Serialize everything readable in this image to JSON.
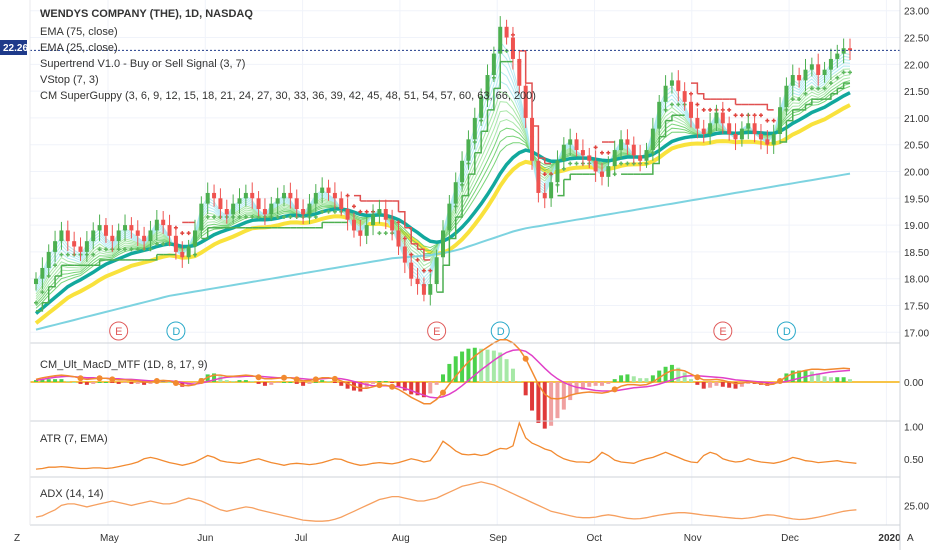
{
  "chart_data": [
    {
      "type": "candlestick",
      "title": "WENDYS COMPANY (THE), 1D, NASDAQ",
      "indicators": [
        "EMA (75, close)",
        "EMA (25, close)",
        "Supertrend V1.0 - Buy or Sell Signal (3, 7)",
        "VStop (7, 3)",
        "CM SuperGuppy (3, 6, 9, 12, 15, 18, 21, 24, 27, 30, 33, 36, 39, 42, 45, 48, 51, 54, 57, 60, 63, 66, 200)"
      ],
      "last_price": "22.26",
      "y_ticks": [
        "23.00",
        "22.50",
        "22.00",
        "21.50",
        "21.00",
        "20.50",
        "20.00",
        "19.50",
        "19.00",
        "18.50",
        "18.00",
        "17.50",
        "17.00"
      ],
      "ylim": [
        16.8,
        23.2
      ],
      "x_ticks": [
        "May",
        "Jun",
        "Jul",
        "Aug",
        "Sep",
        "Oct",
        "Nov",
        "Dec",
        "2020"
      ],
      "events": [
        {
          "label": "E",
          "x": 13
        },
        {
          "label": "D",
          "x": 22
        },
        {
          "label": "E",
          "x": 63
        },
        {
          "label": "D",
          "x": 73
        },
        {
          "label": "E",
          "x": 108
        },
        {
          "label": "D",
          "x": 118
        }
      ],
      "closes": [
        18.0,
        18.2,
        18.5,
        18.7,
        18.9,
        18.7,
        18.6,
        18.5,
        18.7,
        18.9,
        19.0,
        18.8,
        18.7,
        18.9,
        19.0,
        18.9,
        18.8,
        18.7,
        18.9,
        19.1,
        19.0,
        18.8,
        18.5,
        18.4,
        18.6,
        18.9,
        19.4,
        19.6,
        19.5,
        19.3,
        19.2,
        19.4,
        19.5,
        19.6,
        19.5,
        19.3,
        19.2,
        19.4,
        19.5,
        19.6,
        19.5,
        19.3,
        19.2,
        19.4,
        19.6,
        19.7,
        19.6,
        19.5,
        19.3,
        19.1,
        18.9,
        18.8,
        19.0,
        19.2,
        19.3,
        19.1,
        18.9,
        18.6,
        18.3,
        18.0,
        17.9,
        17.7,
        17.9,
        18.4,
        18.9,
        19.4,
        19.8,
        20.2,
        20.6,
        21.0,
        21.4,
        21.8,
        22.2,
        22.7,
        22.5,
        22.1,
        21.6,
        21.0,
        20.2,
        19.6,
        19.5,
        19.8,
        20.2,
        20.5,
        20.6,
        20.4,
        20.3,
        20.2,
        20.0,
        19.9,
        20.1,
        20.4,
        20.6,
        20.5,
        20.3,
        20.2,
        20.4,
        20.8,
        21.3,
        21.6,
        21.7,
        21.5,
        21.3,
        21.0,
        20.8,
        20.7,
        20.9,
        21.1,
        20.9,
        20.7,
        20.6,
        20.8,
        20.9,
        20.7,
        20.6,
        20.5,
        20.7,
        21.2,
        21.6,
        21.8,
        21.7,
        21.9,
        22.0,
        21.8,
        21.9,
        22.1,
        22.2,
        22.3,
        22.26
      ],
      "ema75": [
        17.05,
        17.08,
        17.11,
        17.14,
        17.17,
        17.2,
        17.23,
        17.26,
        17.29,
        17.32,
        17.35,
        17.38,
        17.41,
        17.44,
        17.47,
        17.5,
        17.53,
        17.56,
        17.59,
        17.62,
        17.65,
        17.68,
        17.7,
        17.72,
        17.74,
        17.76,
        17.78,
        17.8,
        17.82,
        17.84,
        17.86,
        17.88,
        17.9,
        17.92,
        17.94,
        17.96,
        17.98,
        18.0,
        18.02,
        18.04,
        18.06,
        18.08,
        18.1,
        18.12,
        18.14,
        18.16,
        18.18,
        18.2,
        18.22,
        18.24,
        18.26,
        18.28,
        18.3,
        18.32,
        18.34,
        18.36,
        18.38,
        18.39,
        18.4,
        18.41,
        18.42,
        18.43,
        18.44,
        18.46,
        18.48,
        18.5,
        18.53,
        18.56,
        18.6,
        18.64,
        18.68,
        18.72,
        18.76,
        18.8,
        18.84,
        18.88,
        18.91,
        18.94,
        18.96,
        18.98,
        19.0,
        19.02,
        19.04,
        19.06,
        19.08,
        19.1,
        19.12,
        19.14,
        19.16,
        19.18,
        19.2,
        19.22,
        19.24,
        19.26,
        19.28,
        19.3,
        19.32,
        19.34,
        19.36,
        19.38,
        19.4,
        19.42,
        19.44,
        19.46,
        19.48,
        19.5,
        19.52,
        19.54,
        19.56,
        19.58,
        19.6,
        19.62,
        19.64,
        19.66,
        19.68,
        19.7,
        19.72,
        19.74,
        19.76,
        19.78,
        19.8,
        19.82,
        19.84,
        19.86,
        19.88,
        19.9,
        19.92,
        19.94,
        19.96
      ],
      "ema25": [
        17.35,
        17.45,
        17.55,
        17.65,
        17.75,
        17.85,
        17.92,
        17.98,
        18.05,
        18.12,
        18.2,
        18.27,
        18.32,
        18.37,
        18.42,
        18.47,
        18.5,
        18.53,
        18.56,
        18.6,
        18.63,
        18.65,
        18.63,
        18.6,
        18.6,
        18.62,
        18.68,
        18.75,
        18.82,
        18.87,
        18.91,
        18.95,
        19.0,
        19.05,
        19.09,
        19.1,
        19.1,
        19.11,
        19.13,
        19.16,
        19.18,
        19.18,
        19.17,
        19.18,
        19.21,
        19.25,
        19.28,
        19.3,
        19.3,
        19.28,
        19.24,
        19.2,
        19.18,
        19.18,
        19.19,
        19.18,
        19.15,
        19.1,
        19.03,
        18.94,
        18.86,
        18.77,
        18.7,
        18.68,
        18.7,
        18.76,
        18.85,
        18.96,
        19.09,
        19.24,
        19.4,
        19.57,
        19.76,
        19.96,
        20.13,
        20.26,
        20.35,
        20.4,
        20.37,
        20.3,
        20.23,
        20.19,
        20.19,
        20.21,
        20.24,
        20.25,
        20.25,
        20.25,
        20.23,
        20.21,
        20.2,
        20.22,
        20.25,
        20.27,
        20.27,
        20.27,
        20.28,
        20.32,
        20.39,
        20.48,
        20.56,
        20.6,
        20.63,
        20.65,
        20.66,
        20.66,
        20.68,
        20.71,
        20.72,
        20.72,
        20.71,
        20.72,
        20.73,
        20.73,
        20.72,
        20.71,
        20.71,
        20.75,
        20.82,
        20.9,
        20.96,
        21.03,
        21.1,
        21.15,
        21.2,
        21.27,
        21.34,
        21.41,
        21.47
      ]
    },
    {
      "type": "line",
      "title": "CM_Ult_MacD_MTF (1D, 8, 17, 9)",
      "y_ticks": [
        "0.00"
      ],
      "ylim": [
        -0.7,
        0.7
      ],
      "macd": [
        0.05,
        0.08,
        0.1,
        0.12,
        0.13,
        0.12,
        0.1,
        0.07,
        0.05,
        0.06,
        0.07,
        0.07,
        0.05,
        0.04,
        0.04,
        0.03,
        0.02,
        0.0,
        0.0,
        0.02,
        0.03,
        0.02,
        -0.02,
        -0.06,
        -0.07,
        -0.05,
        0.02,
        0.09,
        0.13,
        0.13,
        0.11,
        0.11,
        0.12,
        0.13,
        0.12,
        0.09,
        0.06,
        0.06,
        0.07,
        0.08,
        0.08,
        0.05,
        0.02,
        0.03,
        0.05,
        0.08,
        0.08,
        0.06,
        0.02,
        -0.03,
        -0.08,
        -0.12,
        -0.12,
        -0.09,
        -0.06,
        -0.06,
        -0.09,
        -0.14,
        -0.21,
        -0.29,
        -0.35,
        -0.41,
        -0.41,
        -0.33,
        -0.2,
        -0.04,
        0.11,
        0.25,
        0.38,
        0.49,
        0.58,
        0.66,
        0.74,
        0.8,
        0.8,
        0.74,
        0.62,
        0.44,
        0.2,
        -0.05,
        -0.23,
        -0.31,
        -0.32,
        -0.3,
        -0.25,
        -0.22,
        -0.2,
        -0.19,
        -0.2,
        -0.21,
        -0.19,
        -0.14,
        -0.08,
        -0.05,
        -0.05,
        -0.06,
        -0.05,
        0.0,
        0.08,
        0.16,
        0.22,
        0.23,
        0.21,
        0.15,
        0.09,
        0.04,
        0.04,
        0.05,
        0.03,
        0.0,
        -0.03,
        -0.02,
        0.0,
        -0.01,
        -0.03,
        -0.05,
        -0.04,
        0.02,
        0.1,
        0.16,
        0.19,
        0.22,
        0.24,
        0.24,
        0.23,
        0.24,
        0.25,
        0.26,
        0.25
      ],
      "signal": [
        0.03,
        0.05,
        0.07,
        0.09,
        0.1,
        0.11,
        0.1,
        0.09,
        0.08,
        0.08,
        0.07,
        0.07,
        0.06,
        0.06,
        0.05,
        0.05,
        0.04,
        0.03,
        0.02,
        0.02,
        0.02,
        0.02,
        0.01,
        -0.01,
        -0.03,
        -0.04,
        -0.02,
        0.01,
        0.04,
        0.07,
        0.09,
        0.1,
        0.1,
        0.11,
        0.11,
        0.11,
        0.1,
        0.09,
        0.08,
        0.08,
        0.08,
        0.07,
        0.06,
        0.05,
        0.05,
        0.06,
        0.07,
        0.07,
        0.06,
        0.04,
        0.01,
        -0.02,
        -0.05,
        -0.07,
        -0.07,
        -0.07,
        -0.08,
        -0.09,
        -0.12,
        -0.16,
        -0.21,
        -0.25,
        -0.29,
        -0.3,
        -0.28,
        -0.23,
        -0.16,
        -0.07,
        0.03,
        0.13,
        0.23,
        0.32,
        0.41,
        0.49,
        0.56,
        0.6,
        0.61,
        0.58,
        0.5,
        0.38,
        0.26,
        0.15,
        0.06,
        -0.01,
        -0.06,
        -0.1,
        -0.12,
        -0.14,
        -0.16,
        -0.17,
        -0.17,
        -0.17,
        -0.15,
        -0.13,
        -0.11,
        -0.1,
        -0.09,
        -0.07,
        -0.04,
        0.0,
        0.04,
        0.08,
        0.11,
        0.12,
        0.12,
        0.11,
        0.1,
        0.09,
        0.08,
        0.06,
        0.04,
        0.03,
        0.02,
        0.01,
        0.0,
        -0.01,
        -0.02,
        -0.01,
        0.01,
        0.04,
        0.07,
        0.1,
        0.13,
        0.15,
        0.17,
        0.19,
        0.2,
        0.21,
        0.22
      ]
    },
    {
      "type": "line",
      "title": "ATR (7, EMA)",
      "y_ticks": [
        "1.00",
        "0.50"
      ],
      "ylim": [
        0.25,
        1.05
      ],
      "values": [
        0.34,
        0.35,
        0.37,
        0.37,
        0.38,
        0.37,
        0.36,
        0.35,
        0.35,
        0.36,
        0.36,
        0.35,
        0.36,
        0.38,
        0.4,
        0.42,
        0.45,
        0.5,
        0.52,
        0.5,
        0.47,
        0.44,
        0.42,
        0.4,
        0.42,
        0.45,
        0.5,
        0.55,
        0.52,
        0.47,
        0.45,
        0.44,
        0.43,
        0.45,
        0.48,
        0.5,
        0.47,
        0.44,
        0.42,
        0.4,
        0.42,
        0.43,
        0.42,
        0.41,
        0.42,
        0.44,
        0.47,
        0.5,
        0.49,
        0.45,
        0.42,
        0.4,
        0.41,
        0.43,
        0.44,
        0.43,
        0.42,
        0.44,
        0.47,
        0.5,
        0.48,
        0.45,
        0.47,
        0.6,
        0.77,
        0.7,
        0.62,
        0.57,
        0.56,
        0.57,
        0.55,
        0.57,
        0.62,
        0.66,
        0.65,
        0.7,
        1.05,
        0.82,
        0.74,
        0.7,
        0.65,
        0.62,
        0.55,
        0.5,
        0.47,
        0.45,
        0.45,
        0.44,
        0.5,
        0.6,
        0.55,
        0.48,
        0.45,
        0.44,
        0.43,
        0.47,
        0.5,
        0.52,
        0.56,
        0.6,
        0.56,
        0.52,
        0.48,
        0.45,
        0.44,
        0.55,
        0.6,
        0.57,
        0.5,
        0.47,
        0.45,
        0.46,
        0.5,
        0.47,
        0.45,
        0.44,
        0.43,
        0.45,
        0.48,
        0.52,
        0.5,
        0.47,
        0.46,
        0.44,
        0.45,
        0.46,
        0.47,
        0.45,
        0.44,
        0.43
      ]
    },
    {
      "type": "line",
      "title": "ADX (14, 14)",
      "y_ticks": [
        "25.00"
      ],
      "ylim": [
        19,
        34
      ],
      "values": [
        21.0,
        21.5,
        22.5,
        23.5,
        25.0,
        25.5,
        25.5,
        25.0,
        24.5,
        25.0,
        25.5,
        26.0,
        26.5,
        26.0,
        25.5,
        25.0,
        25.5,
        26.0,
        26.5,
        26.0,
        25.5,
        25.5,
        26.0,
        26.8,
        27.5,
        27.0,
        26.5,
        25.5,
        24.5,
        23.5,
        23.0,
        23.5,
        24.0,
        24.5,
        24.2,
        23.5,
        23.0,
        22.5,
        22.0,
        21.5,
        21.0,
        20.5,
        20.0,
        19.8,
        19.6,
        19.6,
        19.8,
        20.3,
        21.0,
        22.0,
        23.0,
        24.0,
        25.0,
        26.0,
        27.0,
        27.5,
        28.0,
        28.0,
        27.5,
        27.0,
        26.5,
        26.5,
        27.0,
        27.5,
        28.5,
        29.5,
        30.5,
        31.5,
        32.0,
        32.5,
        33.0,
        32.5,
        32.0,
        31.0,
        30.0,
        29.0,
        28.0,
        27.0,
        26.0,
        25.0,
        24.0,
        23.0,
        22.5,
        22.0,
        21.5,
        21.0,
        20.8,
        20.8,
        21.0,
        21.5,
        21.8,
        21.5,
        21.0,
        20.6,
        20.4,
        20.5,
        20.8,
        21.3,
        21.7,
        22.0,
        22.3,
        22.5,
        22.5,
        22.3,
        22.0,
        21.7,
        21.5,
        21.3,
        21.0,
        20.8,
        20.6,
        20.5,
        20.7,
        21.0,
        21.5,
        21.8,
        21.7,
        21.3,
        20.8,
        20.4,
        20.2,
        20.3,
        20.6,
        21.0,
        21.5,
        22.0,
        22.5,
        23.0,
        23.3,
        23.5
      ]
    }
  ],
  "ui": {
    "z_label": "Z",
    "a_label": "A"
  },
  "colors": {
    "up": "#4caf50",
    "down": "#ef5350",
    "ema75": "#7dd3e0",
    "ema25": "#12a89d",
    "slow_band": "#f9e23c",
    "fast_band": "#80e0ee",
    "supertrend_up": "#4caf50",
    "supertrend_down": "#e05050",
    "vstop_up": "#5fb85f",
    "vstop_down": "#e0443e",
    "price_line": "#1e3a8a",
    "macd": "#f28a30",
    "signal": "#e040c8",
    "atr": "#f28a30",
    "adx": "#f6a060"
  }
}
